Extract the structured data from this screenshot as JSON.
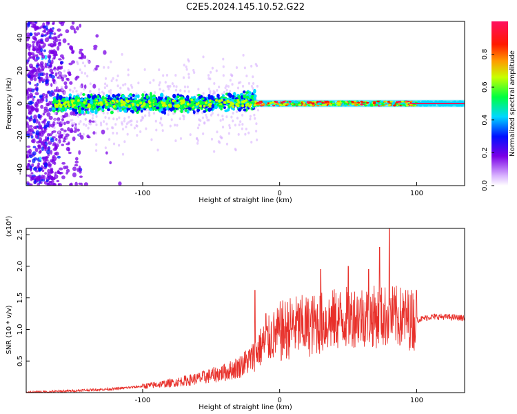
{
  "title": "C2E5.2024.145.10.52.G22",
  "chart_data": [
    {
      "type": "heatmap",
      "title": "C2E5.2024.145.10.52.G22",
      "xlabel": "Height of straight line (km)",
      "ylabel": "Frequency (Hz)",
      "xlim": [
        -185,
        135
      ],
      "ylim": [
        -50,
        50
      ],
      "x_ticks": [
        -100,
        0,
        100
      ],
      "y_ticks": [
        -40,
        -20,
        0,
        20,
        40
      ],
      "colorbar": {
        "label": "Normalized spectral amplitude",
        "range": [
          0,
          1
        ],
        "ticks": [
          0.0,
          0.2,
          0.4,
          0.6,
          0.8
        ],
        "colors": [
          "#ffffff",
          "#8a2be2",
          "#0000ff",
          "#00e5ff",
          "#00ff00",
          "#ffff00",
          "#ff7f00",
          "#ff0000",
          "#ff1493"
        ]
      },
      "segments": [
        {
          "x_start": -185,
          "x_end": -165,
          "freq_center": 0,
          "freq_spread": 50,
          "amplitude": 0.25,
          "note_en": ""
        },
        {
          "x_start": -165,
          "x_end": -18,
          "freq_center": 0,
          "freq_spread": 6,
          "amplitude": 0.4
        },
        {
          "x_start": -18,
          "x_end": 135,
          "freq_center": 0,
          "freq_spread": 1,
          "amplitude": 0.85
        }
      ]
    },
    {
      "type": "line",
      "xlabel": "Height of straight line (km)",
      "ylabel": "SNR (10 * v/v)",
      "y_multiplier": "(x10⁴)",
      "xlim": [
        -185,
        135
      ],
      "ylim": [
        0,
        2.6
      ],
      "x_ticks": [
        -100,
        0,
        100
      ],
      "y_ticks": [
        0.5,
        1.0,
        1.5,
        2.0,
        2.5
      ],
      "color": "#e8302a",
      "series": [
        {
          "name": "",
          "x": [
            -185,
            -160,
            -140,
            -120,
            -100,
            -80,
            -60,
            -40,
            -30,
            -20,
            -15,
            -10,
            -5,
            0,
            5,
            10,
            20,
            30,
            40,
            50,
            60,
            70,
            75,
            80,
            85,
            90,
            100,
            110,
            120,
            135
          ],
          "y": [
            0.0,
            0.02,
            0.04,
            0.06,
            0.1,
            0.15,
            0.22,
            0.32,
            0.4,
            0.55,
            0.7,
            0.8,
            0.9,
            0.95,
            1.0,
            1.05,
            1.05,
            1.1,
            1.15,
            1.2,
            1.22,
            1.2,
            1.2,
            1.22,
            1.2,
            1.18,
            1.15,
            1.2,
            1.2,
            1.18
          ],
          "spikes": [
            {
              "x": -18,
              "y": 1.62
            },
            {
              "x": -10,
              "y": 1.25
            },
            {
              "x": 30,
              "y": 1.95
            },
            {
              "x": 50,
              "y": 2.0
            },
            {
              "x": 65,
              "y": 1.95
            },
            {
              "x": 73,
              "y": 2.3
            },
            {
              "x": 80,
              "y": 2.6
            },
            {
              "x": 100,
              "y": 1.62
            }
          ]
        }
      ]
    }
  ]
}
